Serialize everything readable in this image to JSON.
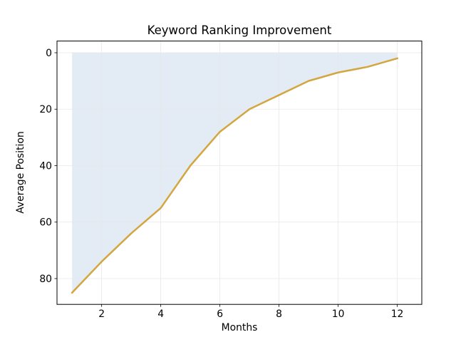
{
  "chart_data": {
    "type": "line",
    "title": "Keyword Ranking Improvement",
    "xlabel": "Months",
    "ylabel": "Average Position",
    "x": [
      1,
      2,
      3,
      4,
      5,
      6,
      7,
      8,
      9,
      10,
      11,
      12
    ],
    "y": [
      85,
      74,
      64,
      55,
      40,
      28,
      20,
      15,
      10,
      7,
      5,
      2
    ],
    "y_axis_inverted": true,
    "area_fill_between_curve_and": 0,
    "xticks": [
      2,
      4,
      6,
      8,
      10,
      12
    ],
    "yticks": [
      0,
      20,
      40,
      60,
      80
    ],
    "xlim": [
      0.49,
      12.83
    ],
    "ylim": {
      "top": -4.14,
      "bottom": 89.14
    },
    "grid": true,
    "line_color": "#d3a640",
    "fill_color": "#4682b4",
    "fill_alpha": 0.15,
    "grid_color": "#e7e7e7",
    "axis_color": "#000000",
    "tick_label_color": "#000000",
    "background_color": "#ffffff"
  }
}
